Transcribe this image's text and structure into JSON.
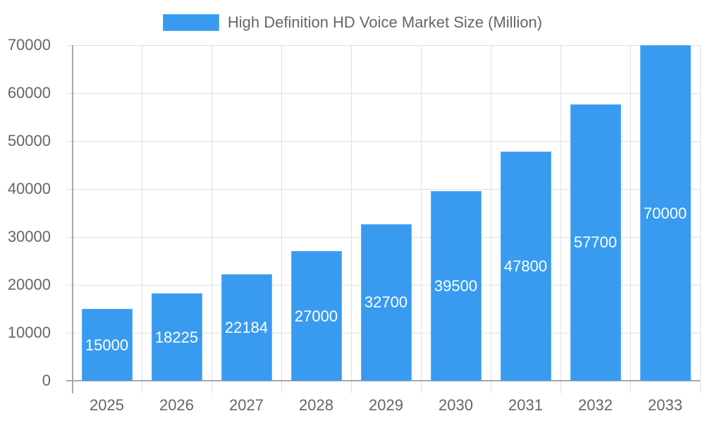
{
  "chart_data": {
    "type": "bar",
    "title": "",
    "legend": [
      "High Definition HD Voice Market Size (Million)"
    ],
    "legend_position": "top",
    "categories": [
      "2025",
      "2026",
      "2027",
      "2028",
      "2029",
      "2030",
      "2031",
      "2032",
      "2033"
    ],
    "series": [
      {
        "name": "High Definition HD Voice Market Size (Million)",
        "values": [
          15000,
          18225,
          22184,
          27000,
          32700,
          39500,
          47800,
          57700,
          70000
        ],
        "color": "#389BF0"
      }
    ],
    "data_labels": [
      "15000",
      "18225",
      "22184",
      "27000",
      "32700",
      "39500",
      "47800",
      "57700",
      "70000"
    ],
    "xlabel": "",
    "ylabel": "",
    "ylim": [
      0,
      70000
    ],
    "yticks": [
      "0",
      "10000",
      "20000",
      "30000",
      "40000",
      "50000",
      "60000",
      "70000"
    ],
    "grid": true
  },
  "legend": {
    "label": "High Definition HD Voice Market Size (Million)",
    "color": "#389BF0"
  }
}
